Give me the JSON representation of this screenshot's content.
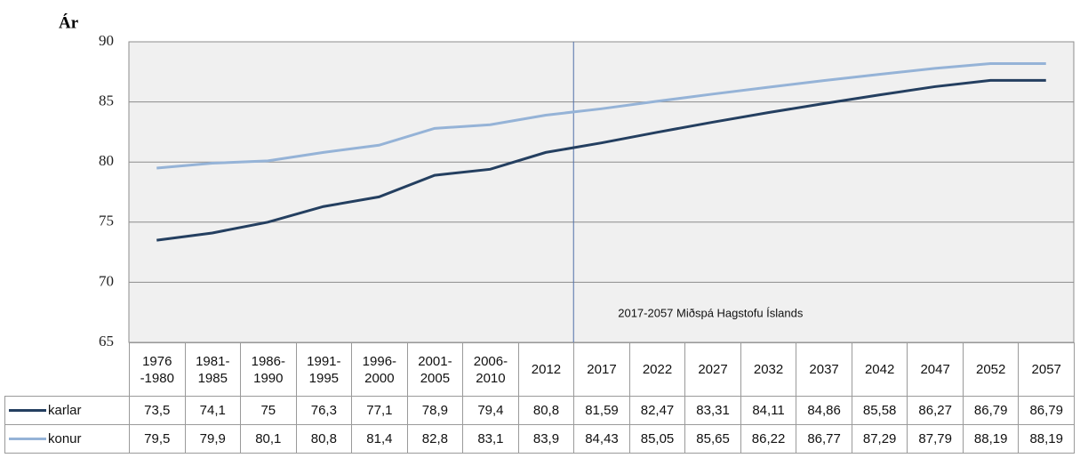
{
  "chart_data": {
    "type": "line",
    "y_label": "Ár",
    "annotation": "2017-2057 Miðspá Hagstofu Íslands",
    "categories": [
      "1976\n-1980",
      "1981-\n1985",
      "1986-\n1990",
      "1991-\n1995",
      "1996-\n2000",
      "2001-\n2005",
      "2006-\n2010",
      "2012",
      "2017",
      "2022",
      "2027",
      "2032",
      "2037",
      "2042",
      "2047",
      "2052",
      "2057"
    ],
    "series": [
      {
        "name": "karlar",
        "color": "#243f60",
        "values": [
          73.5,
          74.1,
          75,
          76.3,
          77.1,
          78.9,
          79.4,
          80.8,
          81.59,
          82.47,
          83.31,
          84.11,
          84.86,
          85.58,
          86.27,
          86.79,
          86.79
        ],
        "value_labels": [
          "73,5",
          "74,1",
          "75",
          "76,3",
          "77,1",
          "78,9",
          "79,4",
          "80,8",
          "81,59",
          "82,47",
          "83,31",
          "84,11",
          "84,86",
          "85,58",
          "86,27",
          "86,79",
          "86,79"
        ]
      },
      {
        "name": "konur",
        "color": "#95b3d7",
        "values": [
          79.5,
          79.9,
          80.1,
          80.8,
          81.4,
          82.8,
          83.1,
          83.9,
          84.43,
          85.05,
          85.65,
          86.22,
          86.77,
          87.29,
          87.79,
          88.19,
          88.19
        ],
        "value_labels": [
          "79,5",
          "79,9",
          "80,1",
          "80,8",
          "81,4",
          "82,8",
          "83,1",
          "83,9",
          "84,43",
          "85,05",
          "85,65",
          "86,22",
          "86,77",
          "87,29",
          "87,79",
          "88,19",
          "88,19"
        ]
      }
    ],
    "ylim": [
      65,
      90
    ],
    "yticks": [
      65,
      70,
      75,
      80,
      85,
      90
    ],
    "grid": true
  }
}
